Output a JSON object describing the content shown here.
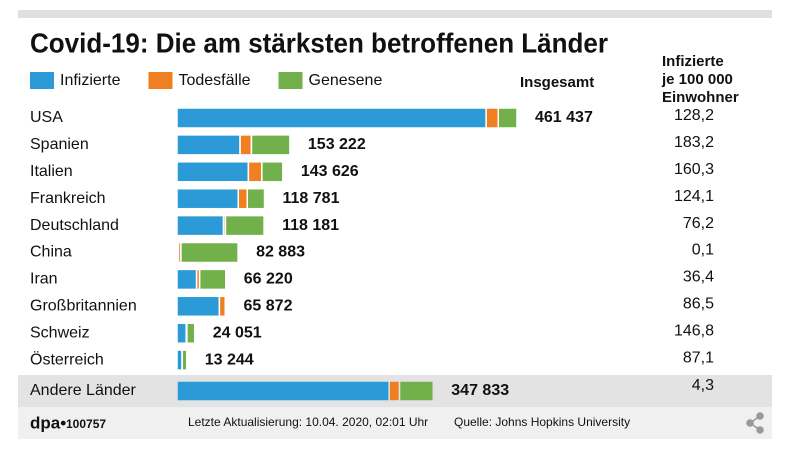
{
  "chart_data": {
    "type": "bar",
    "orientation": "horizontal",
    "stacked": true,
    "title": "Covid-19: Die am stärksten betroffenen Länder",
    "total_label": "Insgesamt",
    "side_header": "Infizierte je 100 000 Einwohner",
    "categories": [
      "USA",
      "Spanien",
      "Italien",
      "Frankreich",
      "Deutschland",
      "China",
      "Iran",
      "Großbritannien",
      "Schweiz",
      "Österreich",
      "Andere Länder"
    ],
    "series": [
      {
        "name": "Infizierte",
        "color": "#2b9ad6",
        "values": [
          419549,
          85610,
          96877,
          83140,
          63167,
          2019,
          26645,
          57535,
          12503,
          6885,
          288000
        ]
      },
      {
        "name": "Todesfälle",
        "color": "#f07f22",
        "values": [
          16478,
          15447,
          18279,
          12228,
          2607,
          3339,
          4110,
          7993,
          948,
          295,
          14000
        ]
      },
      {
        "name": "Genesene",
        "color": "#72b04b",
        "values": [
          25410,
          52165,
          28470,
          23413,
          52407,
          77525,
          35465,
          344,
          10600,
          6064,
          45833
        ]
      }
    ],
    "totals": {
      "values": [
        461437,
        153222,
        143626,
        118781,
        118181,
        82883,
        66220,
        65872,
        24051,
        13244,
        347833
      ],
      "value_labels": [
        "461 437",
        "153 222",
        "143 626",
        "118 781",
        "118 181",
        "82 883",
        "66 220",
        "65 872",
        "24 051",
        "13 244",
        "347 833"
      ]
    },
    "per_100k": {
      "values": [
        128.2,
        183.2,
        160.3,
        124.1,
        76.2,
        0.1,
        36.4,
        86.5,
        146.8,
        87.1,
        4.3
      ],
      "value_labels": [
        "128,2",
        "183,2",
        "160,3",
        "124,1",
        "76,2",
        "0,1",
        "36,4",
        "86,5",
        "146,8",
        "87,1",
        "4,3"
      ]
    },
    "footer": {
      "brand": "dpa•",
      "id": "100757",
      "updated": "Letzte Aktualisierung: 10.04. 2020, 02:01 Uhr",
      "source": "Quelle: Johns Hopkins University"
    }
  }
}
